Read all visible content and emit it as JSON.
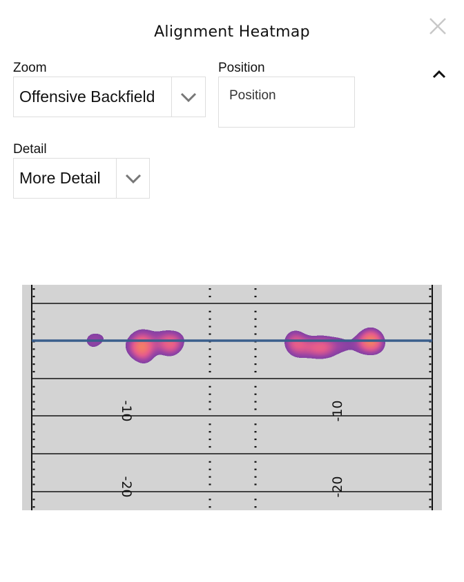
{
  "header": {
    "title": "Alignment Heatmap",
    "close_icon": "close-icon",
    "collapse_icon": "chevron-up-icon"
  },
  "filters": {
    "zoom": {
      "label": "Zoom",
      "value": "Offensive Backfield"
    },
    "position": {
      "label": "Position",
      "placeholder": "Position"
    },
    "detail": {
      "label": "Detail",
      "value": "More Detail"
    }
  },
  "chart_data": {
    "type": "heatmap",
    "title": "",
    "x_unit": "yards from field center",
    "y_unit": "yards from line of scrimmage",
    "yard_labels_left": [
      "-10",
      "-20"
    ],
    "yard_labels_right": [
      "-10",
      "-20"
    ],
    "line_of_scrimmage_color": "#3a5e8c",
    "field_color": "#d3d3d3",
    "hotspots": [
      {
        "x": -18.5,
        "y": 0,
        "w": 0.5
      },
      {
        "x": -16,
        "y": 0.8,
        "w": 0.25
      },
      {
        "x": -14.5,
        "y": -1.2,
        "w": 0.2
      },
      {
        "x": -12,
        "y": -0.8,
        "w": 1.0
      },
      {
        "x": -11.5,
        "y": -2.5,
        "w": 0.3
      },
      {
        "x": -12.5,
        "y": 1.2,
        "w": 0.25
      },
      {
        "x": -8.3,
        "y": -0.6,
        "w": 0.8
      },
      {
        "x": -7,
        "y": 0.4,
        "w": 0.3
      },
      {
        "x": -10,
        "y": 0.8,
        "w": 0.3
      },
      {
        "x": 8.4,
        "y": 0,
        "w": 0.7
      },
      {
        "x": 8.5,
        "y": -1.5,
        "w": 0.25
      },
      {
        "x": 11.7,
        "y": -0.8,
        "w": 0.75
      },
      {
        "x": 10,
        "y": -1.2,
        "w": 0.3
      },
      {
        "x": 14.5,
        "y": 0,
        "w": 0.3
      },
      {
        "x": 13.5,
        "y": -1.3,
        "w": 0.3
      },
      {
        "x": 18.4,
        "y": 0.1,
        "w": 1.0
      },
      {
        "x": 19.3,
        "y": -0.8,
        "w": 0.3
      },
      {
        "x": 16.5,
        "y": -1,
        "w": 0.3
      }
    ]
  }
}
